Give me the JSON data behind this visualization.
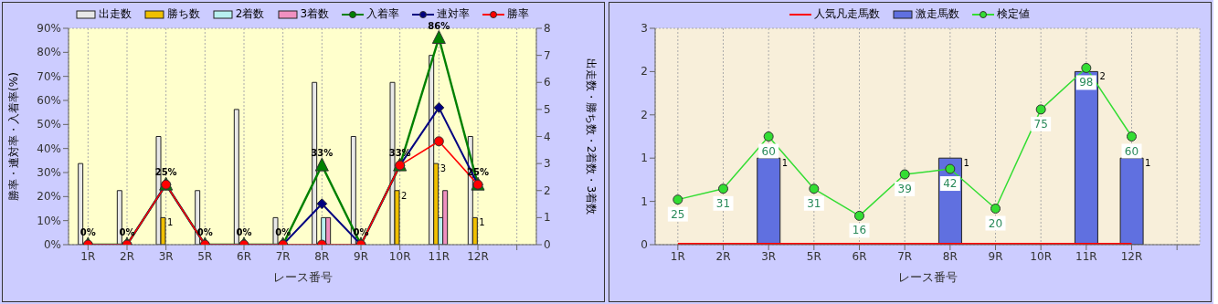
{
  "chart_data": [
    {
      "type": "bar",
      "xlabel": "レース番号",
      "ylabel": "勝率・連対率・入着率(%)",
      "y2label": "出走数・勝ち数・2着数・3着数",
      "categories": [
        "1R",
        "2R",
        "3R",
        "5R",
        "6R",
        "7R",
        "8R",
        "9R",
        "10R",
        "11R",
        "12R",
        null
      ],
      "ylim": [
        0,
        90
      ],
      "yticks": [
        {
          "value": 0,
          "label": "0%"
        },
        {
          "value": 10,
          "label": "10%"
        },
        {
          "value": 20,
          "label": "20%"
        },
        {
          "value": 30,
          "label": "30%"
        },
        {
          "value": 40,
          "label": "40%"
        },
        {
          "value": 50,
          "label": "50%"
        },
        {
          "value": 60,
          "label": "60%"
        },
        {
          "value": 70,
          "label": "70%"
        },
        {
          "value": 80,
          "label": "80%"
        },
        {
          "value": 90,
          "label": "90%"
        }
      ],
      "y2lim": [
        0,
        8
      ],
      "y2ticks": [
        0,
        1,
        2,
        3,
        4,
        5,
        6,
        7,
        8
      ],
      "grid": true,
      "legend": "top",
      "series": [
        {
          "name": "出走数",
          "axis": "y2",
          "color": "#e8e8e8",
          "values": [
            3,
            2,
            4,
            2,
            5,
            1,
            6,
            4,
            6,
            7,
            4,
            null
          ]
        },
        {
          "name": "勝ち数",
          "axis": "y2",
          "color": "#f0c000",
          "values": [
            0,
            0,
            1,
            0,
            0,
            0,
            0,
            0,
            2,
            3,
            1,
            null
          ],
          "value_labels": [
            null,
            null,
            "1",
            null,
            null,
            null,
            null,
            null,
            "2",
            "3",
            "1",
            null
          ]
        },
        {
          "name": "2着数",
          "axis": "y2",
          "color": "#b8f0f0",
          "values": [
            0,
            0,
            0,
            0,
            0,
            0,
            1,
            0,
            0,
            1,
            0,
            null
          ]
        },
        {
          "name": "3着数",
          "axis": "y2",
          "color": "#f090c0",
          "values": [
            0,
            0,
            0,
            0,
            0,
            0,
            1,
            0,
            0,
            2,
            0,
            null
          ]
        },
        {
          "name": "入着率",
          "type": "line",
          "axis": "y",
          "color": "#008000",
          "marker": "triangle",
          "values": [
            0,
            0,
            25,
            0,
            0,
            0,
            33,
            0,
            33,
            86,
            25,
            null
          ],
          "value_labels": [
            "0%",
            "0%",
            "25%",
            "0%",
            "0%",
            "0%",
            "33%",
            "0%",
            "33%",
            "86%",
            "25%",
            null
          ]
        },
        {
          "name": "連対率",
          "type": "line",
          "axis": "y",
          "color": "#000080",
          "marker": "diamond",
          "values": [
            0,
            0,
            25,
            0,
            0,
            0,
            17,
            0,
            33,
            57,
            25,
            null
          ]
        },
        {
          "name": "勝率",
          "type": "line",
          "axis": "y",
          "color": "#ff0000",
          "marker": "circle",
          "values": [
            0,
            0,
            25,
            0,
            0,
            0,
            0,
            0,
            33,
            43,
            25,
            null
          ]
        }
      ]
    },
    {
      "type": "bar",
      "xlabel": "レース番号",
      "categories": [
        "1R",
        "2R",
        "3R",
        "5R",
        "6R",
        "7R",
        "8R",
        "9R",
        "10R",
        "11R",
        "12R",
        null
      ],
      "ylim": [
        0,
        2.5
      ],
      "yticks": [
        {
          "value": 0,
          "label": "0"
        },
        {
          "value": 0.5,
          "label": "1"
        },
        {
          "value": 1,
          "label": "1"
        },
        {
          "value": 1.5,
          "label": "2"
        },
        {
          "value": 2,
          "label": "2"
        },
        {
          "value": 2.5,
          "label": "3"
        }
      ],
      "y2lim": [
        0,
        120
      ],
      "grid": true,
      "legend": "top",
      "series": [
        {
          "name": "人気凡走馬数",
          "type": "line",
          "axis": "y",
          "color": "#ff0000",
          "marker": "none",
          "values": [
            0,
            0,
            0,
            0,
            0,
            0,
            0,
            0,
            0,
            0,
            0,
            null
          ]
        },
        {
          "name": "激走馬数",
          "axis": "y",
          "color": "#6070e0",
          "values": [
            0,
            0,
            1,
            0,
            0,
            0,
            1,
            0,
            0,
            2,
            1,
            null
          ],
          "value_labels": [
            null,
            null,
            "1",
            null,
            null,
            null,
            "1",
            null,
            null,
            "2",
            "1",
            null
          ]
        },
        {
          "name": "検定値",
          "type": "line",
          "axis": "y2",
          "color": "#33dd33",
          "marker": "circle",
          "values": [
            25,
            31,
            60,
            31,
            16,
            39,
            42,
            20,
            75,
            98,
            60,
            null
          ],
          "value_labels": [
            "25",
            "31",
            "60",
            "31",
            "16",
            "39",
            "42",
            "20",
            "75",
            "98",
            "60",
            null
          ]
        }
      ]
    }
  ]
}
